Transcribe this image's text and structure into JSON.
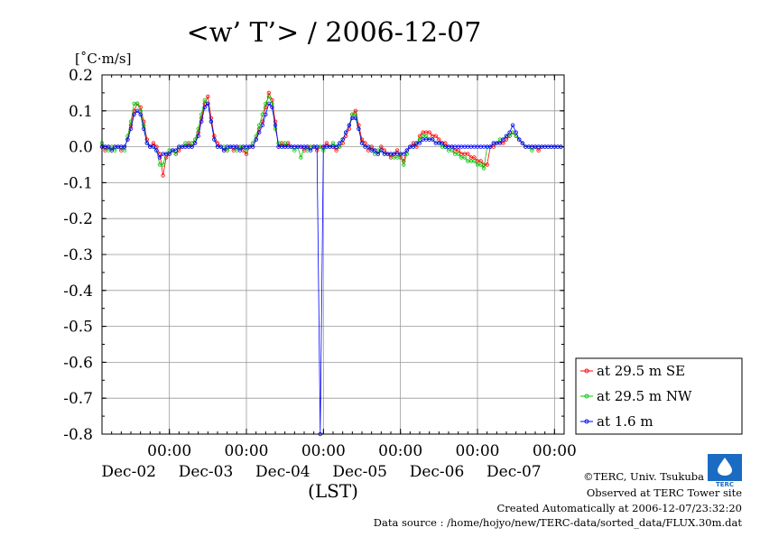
{
  "chart_data": {
    "type": "line",
    "title": "<w’ T’> / 2006-12-07",
    "unit_label": "[˚C·m/s]",
    "xlabel": "(LST)",
    "ylim": [
      -0.8,
      0.2
    ],
    "y_ticks": [
      "0.2",
      "0.1",
      "0.0",
      "-0.1",
      "-0.2",
      "-0.3",
      "-0.4",
      "-0.5",
      "-0.6",
      "-0.7",
      "-0.8"
    ],
    "xlim_hours": [
      0,
      144
    ],
    "x_tick_time": "00:00",
    "x_tick_dates": [
      "Dec-02",
      "Dec-03",
      "Dec-04",
      "Dec-05",
      "Dec-06",
      "Dec-07"
    ],
    "grid": true,
    "legend_position": "right",
    "series": [
      {
        "name": "at 29.5 m SE",
        "color": "#ff0000",
        "x": [
          0,
          1,
          2,
          3,
          4,
          5,
          6,
          7,
          8,
          9,
          10,
          11,
          12,
          13,
          14,
          15,
          16,
          17,
          18,
          19,
          20,
          21,
          22,
          23,
          24,
          25,
          26,
          27,
          28,
          29,
          30,
          31,
          32,
          33,
          34,
          35,
          36,
          37,
          38,
          39,
          40,
          41,
          42,
          43,
          44,
          45,
          46,
          47,
          48,
          49,
          50,
          51,
          52,
          53,
          54,
          55,
          56,
          57,
          58,
          59,
          60,
          61,
          62,
          63,
          64,
          65,
          66,
          67,
          68,
          69,
          70,
          71,
          72,
          73,
          74,
          75,
          76,
          77,
          78,
          79,
          80,
          81,
          82,
          83,
          84,
          85,
          86,
          87,
          88,
          89,
          90,
          91,
          92,
          93,
          94,
          95,
          96,
          97,
          98,
          99,
          100,
          101,
          102,
          103,
          104,
          105,
          106,
          107,
          108,
          109,
          110,
          111,
          112,
          113,
          114,
          115,
          116,
          117,
          118,
          119,
          120,
          121,
          122,
          123,
          124,
          125,
          126,
          127,
          128,
          129,
          130,
          131,
          132,
          133,
          134,
          135,
          136,
          137,
          138,
          139,
          140,
          141,
          142,
          143
        ],
        "y": [
          0.0,
          -0.01,
          0.0,
          -0.01,
          0.0,
          0.0,
          -0.01,
          0.0,
          0.02,
          0.06,
          0.1,
          0.12,
          0.11,
          0.07,
          0.02,
          0.0,
          0.01,
          0.0,
          -0.02,
          -0.08,
          -0.03,
          -0.02,
          -0.01,
          -0.02,
          -0.01,
          0.0,
          0.0,
          0.01,
          0.0,
          0.01,
          0.04,
          0.08,
          0.12,
          0.14,
          0.08,
          0.03,
          0.01,
          0.0,
          -0.01,
          -0.01,
          0.0,
          -0.01,
          0.0,
          0.0,
          -0.01,
          -0.02,
          0.0,
          0.0,
          0.02,
          0.05,
          0.07,
          0.11,
          0.15,
          0.13,
          0.07,
          0.0,
          0.01,
          0.0,
          0.01,
          0.0,
          0.0,
          0.0,
          0.0,
          -0.01,
          0.0,
          0.0,
          0.0,
          -0.01,
          0.0,
          0.0,
          0.01,
          0.0,
          0.0,
          -0.01,
          0.0,
          0.01,
          0.03,
          0.05,
          0.09,
          0.1,
          0.06,
          0.02,
          0.01,
          -0.01,
          0.0,
          -0.01,
          -0.02,
          0.0,
          -0.01,
          -0.02,
          -0.03,
          -0.02,
          -0.01,
          -0.03,
          -0.04,
          -0.01,
          0.0,
          0.01,
          0.0,
          0.03,
          0.04,
          0.04,
          0.04,
          0.03,
          0.03,
          0.02,
          0.01,
          0.01,
          0.0,
          0.0,
          -0.01,
          -0.01,
          -0.02,
          -0.02,
          -0.02,
          -0.03,
          -0.03,
          -0.04,
          -0.04,
          -0.05,
          -0.05,
          0.0,
          0.0,
          0.01,
          0.01,
          0.01,
          0.02,
          0.03,
          0.04,
          0.03,
          0.02,
          0.01,
          0.0,
          0.0,
          0.0,
          0.0,
          -0.01,
          0.0,
          0.0,
          0.0,
          0.0,
          0.0,
          0.0,
          0.0
        ]
      },
      {
        "name": "at 29.5 m NW",
        "color": "#00c800",
        "x": [
          0,
          1,
          2,
          3,
          4,
          5,
          6,
          7,
          8,
          9,
          10,
          11,
          12,
          13,
          14,
          15,
          16,
          17,
          18,
          19,
          20,
          21,
          22,
          23,
          24,
          25,
          26,
          27,
          28,
          29,
          30,
          31,
          32,
          33,
          34,
          35,
          36,
          37,
          38,
          39,
          40,
          41,
          42,
          43,
          44,
          45,
          46,
          47,
          48,
          49,
          50,
          51,
          52,
          53,
          54,
          55,
          56,
          57,
          58,
          59,
          60,
          61,
          62,
          63,
          64,
          65,
          66,
          67,
          68,
          69,
          70,
          71,
          72,
          73,
          74,
          75,
          76,
          77,
          78,
          79,
          80,
          81,
          82,
          83,
          84,
          85,
          86,
          87,
          88,
          89,
          90,
          91,
          92,
          93,
          94,
          95,
          96,
          97,
          98,
          99,
          100,
          101,
          102,
          103,
          104,
          105,
          106,
          107,
          108,
          109,
          110,
          111,
          112,
          113,
          114,
          115,
          116,
          117,
          118,
          119,
          120,
          121,
          122,
          123,
          124,
          125,
          126,
          127,
          128,
          129,
          130,
          131,
          132,
          133,
          134,
          135,
          136,
          137,
          138,
          139,
          140,
          141,
          142,
          143
        ],
        "y": [
          0.01,
          0.0,
          -0.01,
          0.0,
          -0.01,
          0.0,
          0.0,
          -0.01,
          0.03,
          0.07,
          0.12,
          0.12,
          0.1,
          0.06,
          0.01,
          0.0,
          0.0,
          -0.01,
          -0.05,
          -0.05,
          -0.02,
          -0.01,
          -0.01,
          -0.02,
          0.0,
          0.0,
          0.01,
          0.0,
          0.01,
          0.02,
          0.05,
          0.09,
          0.13,
          0.12,
          0.07,
          0.02,
          0.0,
          0.0,
          0.0,
          -0.01,
          0.0,
          0.0,
          -0.01,
          0.0,
          0.0,
          -0.01,
          0.0,
          0.01,
          0.03,
          0.06,
          0.09,
          0.12,
          0.14,
          0.12,
          0.05,
          0.01,
          0.0,
          0.01,
          0.0,
          0.0,
          -0.01,
          0.0,
          -0.03,
          0.0,
          -0.01,
          0.0,
          0.0,
          0.0,
          0.0,
          -0.01,
          0.0,
          0.0,
          0.01,
          0.0,
          0.0,
          0.02,
          0.04,
          0.06,
          0.09,
          0.09,
          0.05,
          0.01,
          0.0,
          0.0,
          -0.01,
          -0.02,
          -0.01,
          -0.01,
          -0.02,
          -0.02,
          -0.02,
          -0.03,
          -0.03,
          -0.02,
          -0.05,
          -0.02,
          0.0,
          0.0,
          0.01,
          0.02,
          0.03,
          0.03,
          0.02,
          0.02,
          0.01,
          0.01,
          0.0,
          0.0,
          -0.01,
          -0.01,
          -0.02,
          -0.02,
          -0.03,
          -0.03,
          -0.04,
          -0.04,
          -0.04,
          -0.05,
          -0.05,
          -0.06,
          0.0,
          0.0,
          0.01,
          0.01,
          0.02,
          0.02,
          0.03,
          0.03,
          0.04,
          0.03,
          0.02,
          0.01,
          0.0,
          0.0,
          -0.01,
          0.0,
          0.0,
          0.0,
          0.0,
          0.0,
          0.0,
          0.0,
          0.0,
          0.0
        ]
      },
      {
        "name": "at 1.6 m",
        "color": "#0000ff",
        "x": [
          0,
          1,
          2,
          3,
          4,
          5,
          6,
          7,
          8,
          9,
          10,
          11,
          12,
          13,
          14,
          15,
          16,
          17,
          18,
          19,
          20,
          21,
          22,
          23,
          24,
          25,
          26,
          27,
          28,
          29,
          30,
          31,
          32,
          33,
          34,
          35,
          36,
          37,
          38,
          39,
          40,
          41,
          42,
          43,
          44,
          45,
          46,
          47,
          48,
          49,
          50,
          51,
          52,
          53,
          54,
          55,
          56,
          57,
          58,
          59,
          60,
          61,
          62,
          63,
          64,
          65,
          66,
          67,
          68,
          69,
          70,
          71,
          72,
          73,
          74,
          75,
          76,
          77,
          78,
          79,
          80,
          81,
          82,
          83,
          84,
          85,
          86,
          87,
          88,
          89,
          90,
          91,
          92,
          93,
          94,
          95,
          96,
          97,
          98,
          99,
          100,
          101,
          102,
          103,
          104,
          105,
          106,
          107,
          108,
          109,
          110,
          111,
          112,
          113,
          114,
          115,
          116,
          117,
          118,
          119,
          120,
          121,
          122,
          123,
          124,
          125,
          126,
          127,
          128,
          129,
          130,
          131,
          132,
          133,
          134,
          135,
          136,
          137,
          138,
          139,
          140,
          141,
          142,
          143
        ],
        "y": [
          0.0,
          0.0,
          0.0,
          -0.01,
          0.0,
          0.0,
          0.0,
          0.0,
          0.02,
          0.05,
          0.09,
          0.1,
          0.09,
          0.05,
          0.01,
          0.0,
          0.0,
          -0.01,
          -0.03,
          -0.02,
          -0.02,
          -0.02,
          -0.01,
          -0.01,
          0.0,
          0.0,
          0.0,
          0.0,
          0.0,
          0.01,
          0.03,
          0.07,
          0.11,
          0.12,
          0.07,
          0.02,
          0.0,
          0.0,
          -0.01,
          0.0,
          0.0,
          0.0,
          0.0,
          -0.01,
          0.0,
          0.0,
          0.0,
          0.0,
          0.02,
          0.04,
          0.06,
          0.09,
          0.12,
          0.11,
          0.06,
          0.0,
          0.0,
          0.0,
          0.0,
          0.0,
          0.0,
          0.0,
          0.0,
          0.0,
          0.0,
          -0.01,
          0.0,
          0.0,
          -0.8,
          0.0,
          0.0,
          0.0,
          0.0,
          0.0,
          0.01,
          0.02,
          0.04,
          0.06,
          0.08,
          0.08,
          0.05,
          0.01,
          0.0,
          0.0,
          -0.01,
          -0.01,
          -0.02,
          -0.01,
          -0.02,
          -0.02,
          -0.02,
          -0.02,
          -0.02,
          -0.02,
          -0.02,
          -0.01,
          0.0,
          0.0,
          0.01,
          0.01,
          0.02,
          0.02,
          0.02,
          0.02,
          0.01,
          0.01,
          0.01,
          0.0,
          0.0,
          0.0,
          0.0,
          0.0,
          0.0,
          0.0,
          0.0,
          0.0,
          0.0,
          0.0,
          0.0,
          0.0,
          0.0,
          0.0,
          0.01,
          0.01,
          0.01,
          0.02,
          0.03,
          0.04,
          0.06,
          0.04,
          0.02,
          0.01,
          0.0,
          0.0,
          0.0,
          0.0,
          0.0,
          0.0,
          0.0,
          0.0,
          0.0,
          0.0,
          0.0,
          0.0
        ]
      }
    ]
  },
  "footer": {
    "copyright": "©TERC, Univ. Tsukuba",
    "observed": "Observed at TERC Tower site",
    "created": "Created Automatically at 2006-12-07/23:32:20",
    "source": "Data source : /home/hojyo/new/TERC-data/sorted_data/FLUX.30m.dat",
    "logo_text": "TERC"
  }
}
